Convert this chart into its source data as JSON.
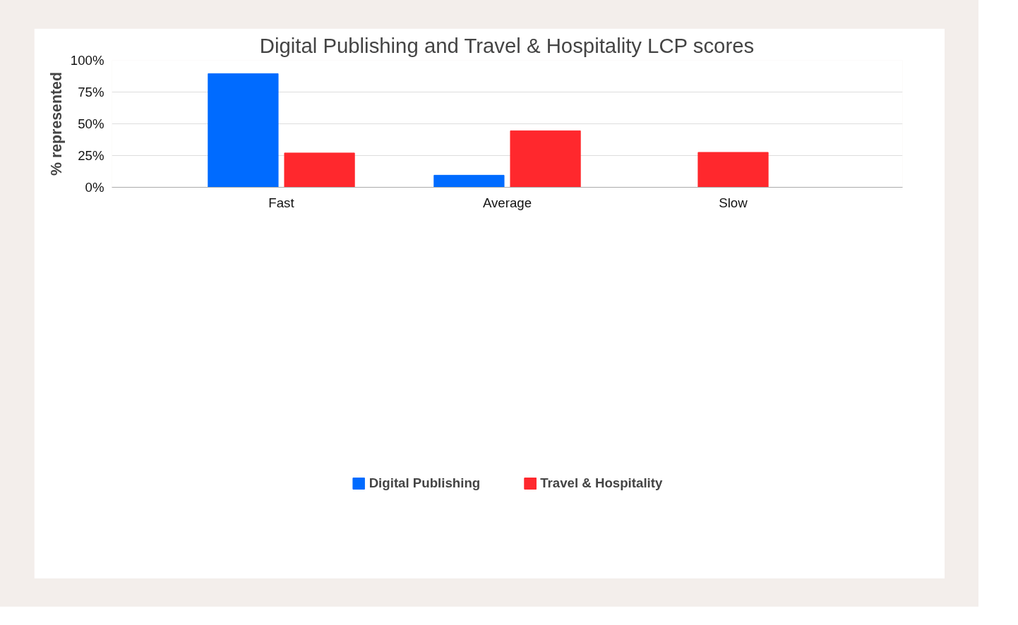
{
  "chart_data": {
    "type": "bar",
    "title": "Digital Publishing and Travel & Hospitality LCP scores",
    "ylabel": "% represented",
    "categories": [
      "Fast",
      "Average",
      "Slow"
    ],
    "series": [
      {
        "name": "Digital Publishing",
        "color": "#006bff",
        "values": [
          89.5,
          9.5,
          null
        ]
      },
      {
        "name": "Travel & Hospitality",
        "color": "#ff282d",
        "values": [
          27,
          44.5,
          27.5
        ]
      }
    ],
    "ylim": [
      0,
      100
    ],
    "yticks": [
      {
        "value": 0,
        "label": "0%"
      },
      {
        "value": 25,
        "label": "25%"
      },
      {
        "value": 50,
        "label": "50%"
      },
      {
        "value": 75,
        "label": "75%"
      },
      {
        "value": 100,
        "label": "100%"
      }
    ],
    "grid": "y",
    "legend": "bottom"
  }
}
